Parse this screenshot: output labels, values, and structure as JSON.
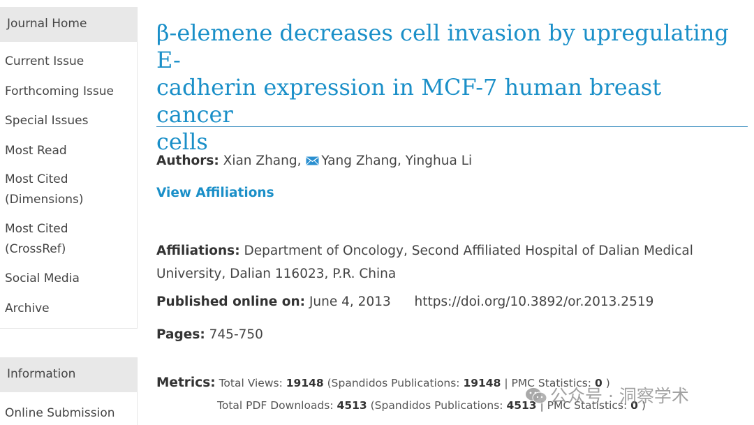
{
  "sidebar": {
    "section_journal": {
      "header": "Journal Home",
      "items": [
        {
          "label": "Current Issue"
        },
        {
          "label": "Forthcoming Issue"
        },
        {
          "label": "Special Issues"
        },
        {
          "label": "Most Read"
        },
        {
          "label": "Most Cited",
          "label2": "(Dimensions)"
        },
        {
          "label": "Most Cited",
          "label2": "(CrossRef)"
        },
        {
          "label": "Social Media"
        },
        {
          "label": "Archive"
        }
      ]
    },
    "section_info": {
      "header": "Information",
      "items": [
        {
          "label": "Online Submission"
        }
      ]
    }
  },
  "article": {
    "title_line1": "β-elemene decreases cell invasion by upregulating E-",
    "title_line2": "cadherin expression in MCF-7 human breast cancer",
    "title_line3": "cells",
    "authors_label": "Authors:",
    "author1": "Xian Zhang,",
    "author2": "Yang Zhang, Yinghua Li",
    "view_affiliations": "View Affiliations",
    "affiliations_label": "Affiliations:",
    "affiliations_line1": "Department of Oncology, Second Affiliated Hospital of Dalian Medical",
    "affiliations_line2": "University, Dalian 116023, P.R. China",
    "published_label": "Published online on:",
    "published_date": "June 4, 2013",
    "doi": "https://doi.org/10.3892/or.2013.2519",
    "pages_label": "Pages:",
    "pages": "745-750",
    "metrics_label": "Metrics:",
    "views_label": "Total Views:",
    "views_total": "19148",
    "views_spandidos_label": "(Spandidos Publications:",
    "views_spandidos": "19148",
    "views_pmc_label": "| PMC Statistics:",
    "views_pmc": "0",
    "downloads_label": "Total PDF Downloads:",
    "downloads_total": "4513",
    "downloads_spandidos_label": "(Spandidos Publications:",
    "downloads_spandidos": "4513",
    "downloads_pmc_label": "| PMC Statistics:",
    "downloads_pmc": "0",
    "close_paren": ")"
  },
  "watermark": {
    "text": "公众号 · 洞察学术"
  },
  "colors": {
    "accent": "#1a8fc8",
    "sidebar_header_bg": "#e8e8e8"
  },
  "icons": {
    "author_email": "envelope-icon",
    "watermark": "wechat-icon"
  }
}
